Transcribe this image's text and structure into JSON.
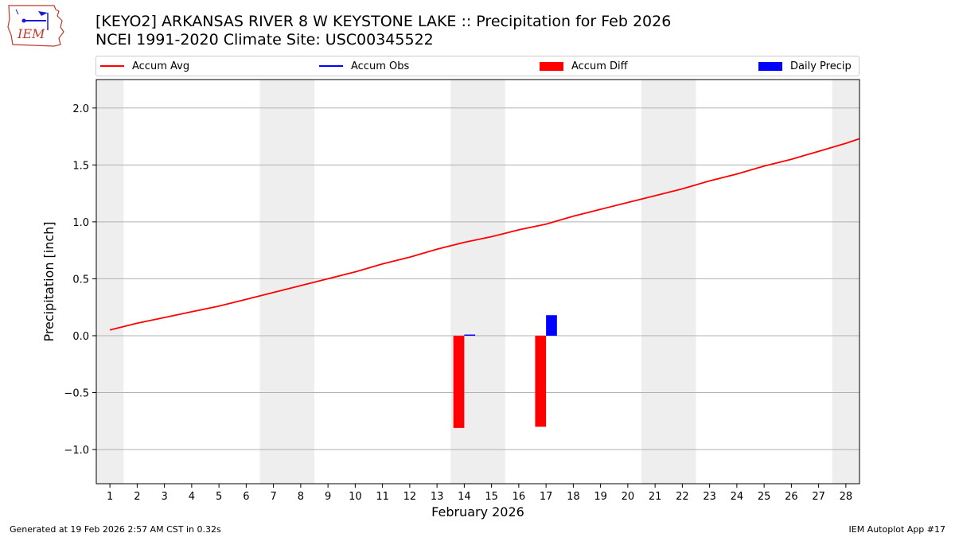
{
  "header": {
    "title_line1": "[KEYO2] ARKANSAS RIVER 8 W KEYSTONE LAKE :: Precipitation for Feb 2026",
    "title_line2": "NCEI 1991-2020 Climate Site: USC00345522",
    "logo_text": "IEM"
  },
  "legend": [
    {
      "label": "Accum Avg",
      "kind": "line",
      "color": "#ff0000"
    },
    {
      "label": "Accum Obs",
      "kind": "line",
      "color": "#0000ff"
    },
    {
      "label": "Accum Diff",
      "kind": "bar",
      "color": "#ff0000"
    },
    {
      "label": "Daily Precip",
      "kind": "bar",
      "color": "#0000ff"
    }
  ],
  "chart_data": {
    "type": "bar",
    "xlabel": "February 2026",
    "ylabel": "Precipitation [inch]",
    "xlim": [
      0.5,
      28.5
    ],
    "ylim": [
      -1.3,
      2.25
    ],
    "yticks": [
      -1.0,
      -0.5,
      0.0,
      0.5,
      1.0,
      1.5,
      2.0
    ],
    "ytick_labels": [
      "−1.0",
      "−0.5",
      "0.0",
      "0.5",
      "1.0",
      "1.5",
      "2.0"
    ],
    "xticks": [
      1,
      2,
      3,
      4,
      5,
      6,
      7,
      8,
      9,
      10,
      11,
      12,
      13,
      14,
      15,
      16,
      17,
      18,
      19,
      20,
      21,
      22,
      23,
      24,
      25,
      26,
      27,
      28
    ],
    "grid": "horizontal",
    "weekend_shading": [
      [
        0.5,
        1.5
      ],
      [
        6.5,
        8.5
      ],
      [
        13.5,
        15.5
      ],
      [
        20.5,
        22.5
      ],
      [
        27.5,
        28.5
      ]
    ],
    "shade_color": "#eeeeee",
    "series": [
      {
        "name": "Accum Avg",
        "type": "line",
        "color": "#ff0000",
        "x": [
          1,
          2,
          3,
          4,
          5,
          6,
          7,
          8,
          9,
          10,
          11,
          12,
          13,
          14,
          15,
          16,
          17,
          18,
          19,
          20,
          21,
          22,
          23,
          24,
          25,
          26,
          27,
          28,
          28.5
        ],
        "values": [
          0.05,
          0.11,
          0.16,
          0.21,
          0.26,
          0.32,
          0.38,
          0.44,
          0.5,
          0.56,
          0.63,
          0.69,
          0.76,
          0.82,
          0.87,
          0.93,
          0.98,
          1.05,
          1.11,
          1.17,
          1.23,
          1.29,
          1.36,
          1.42,
          1.49,
          1.55,
          1.62,
          1.69,
          1.73
        ]
      },
      {
        "name": "Accum Diff",
        "type": "bar",
        "color": "#ff0000",
        "x": [
          14,
          17
        ],
        "values": [
          -0.81,
          -0.8
        ]
      },
      {
        "name": "Daily Precip",
        "type": "bar",
        "color": "#0000ff",
        "x": [
          14,
          17
        ],
        "values": [
          0.01,
          0.18
        ]
      }
    ]
  },
  "footer": {
    "left": "Generated at 19 Feb 2026 2:57 AM CST in 0.32s",
    "right": "IEM Autoplot App #17"
  }
}
